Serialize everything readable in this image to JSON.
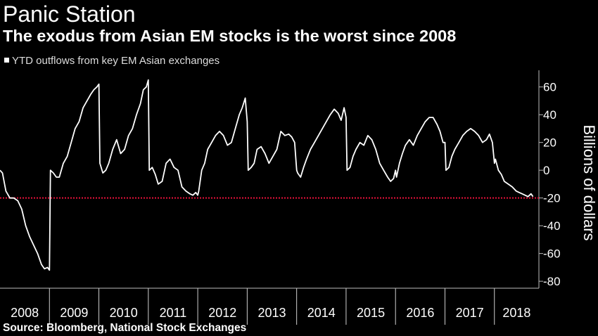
{
  "title": "Panic Station",
  "subtitle": "The exodus from Asian EM stocks is the worst since 2008",
  "source": "Source: Bloomberg, National Stock Exchanges",
  "colors": {
    "background": "#000000",
    "line": "#ffffff",
    "reference_line": "#e8113a",
    "axis": "#bbbbbb"
  },
  "chart_data": {
    "type": "line",
    "title": "",
    "xlabel": "",
    "ylabel": "Billions of dollars",
    "legend": [
      "YTD outflows from key EM Asian exchanges"
    ],
    "legend_position": "top-left",
    "x_domain": [
      2008.0,
      2018.9
    ],
    "ylim": [
      -85,
      72
    ],
    "y_axis_side": "right",
    "y_ticks": [
      60,
      40,
      20,
      0,
      -20,
      -40,
      -60,
      -80
    ],
    "y_tick_labels": [
      "60",
      "40",
      "20",
      "0",
      "-20",
      "-40",
      "-60",
      "-80"
    ],
    "x_tick_labels": [
      "2008",
      "2009",
      "2010",
      "2011",
      "2012",
      "2013",
      "2014",
      "2015",
      "2016",
      "2017",
      "2018"
    ],
    "grid": false,
    "reference_line": {
      "y": -20,
      "style": "dotted"
    },
    "series": [
      {
        "name": "YTD outflows from key EM Asian exchanges",
        "x": [
          2008.0,
          2008.05,
          2008.12,
          2008.2,
          2008.28,
          2008.36,
          2008.44,
          2008.52,
          2008.6,
          2008.68,
          2008.76,
          2008.84,
          2008.9,
          2008.96,
          2009.0,
          2009.02,
          2009.08,
          2009.14,
          2009.2,
          2009.28,
          2009.36,
          2009.44,
          2009.52,
          2009.6,
          2009.68,
          2009.76,
          2009.84,
          2009.9,
          2009.96,
          2010.0,
          2010.02,
          2010.08,
          2010.14,
          2010.2,
          2010.28,
          2010.36,
          2010.44,
          2010.52,
          2010.6,
          2010.68,
          2010.76,
          2010.84,
          2010.9,
          2010.96,
          2011.0,
          2011.02,
          2011.08,
          2011.14,
          2011.2,
          2011.28,
          2011.36,
          2011.44,
          2011.52,
          2011.6,
          2011.68,
          2011.76,
          2011.84,
          2011.9,
          2011.96,
          2012.0,
          2012.02,
          2012.08,
          2012.14,
          2012.2,
          2012.28,
          2012.36,
          2012.44,
          2012.52,
          2012.6,
          2012.68,
          2012.76,
          2012.84,
          2012.9,
          2012.96,
          2013.0,
          2013.02,
          2013.08,
          2013.14,
          2013.2,
          2013.28,
          2013.36,
          2013.44,
          2013.52,
          2013.6,
          2013.68,
          2013.76,
          2013.84,
          2013.9,
          2013.96,
          2014.0,
          2014.02,
          2014.08,
          2014.14,
          2014.2,
          2014.28,
          2014.36,
          2014.44,
          2014.52,
          2014.6,
          2014.68,
          2014.76,
          2014.84,
          2014.9,
          2014.96,
          2015.0,
          2015.02,
          2015.08,
          2015.14,
          2015.2,
          2015.28,
          2015.36,
          2015.44,
          2015.52,
          2015.6,
          2015.68,
          2015.76,
          2015.84,
          2015.9,
          2015.96,
          2016.0,
          2016.02,
          2016.08,
          2016.14,
          2016.2,
          2016.28,
          2016.36,
          2016.44,
          2016.52,
          2016.6,
          2016.68,
          2016.76,
          2016.84,
          2016.9,
          2016.96,
          2017.0,
          2017.02,
          2017.08,
          2017.14,
          2017.2,
          2017.28,
          2017.36,
          2017.44,
          2017.52,
          2017.6,
          2017.68,
          2017.76,
          2017.84,
          2017.9,
          2017.96,
          2018.0,
          2018.02,
          2018.08,
          2018.14,
          2018.2,
          2018.28,
          2018.36,
          2018.44,
          2018.5,
          2018.56,
          2018.62,
          2018.68,
          2018.74,
          2018.78
        ],
        "values": [
          0,
          -2,
          -15,
          -20,
          -20,
          -22,
          -28,
          -40,
          -48,
          -54,
          -60,
          -68,
          -71,
          -70,
          -72,
          0,
          -2,
          -5,
          -5,
          5,
          10,
          20,
          30,
          35,
          45,
          50,
          55,
          58,
          60,
          62,
          5,
          -2,
          0,
          5,
          15,
          22,
          12,
          15,
          25,
          30,
          40,
          48,
          58,
          60,
          65,
          0,
          2,
          -3,
          -10,
          -8,
          5,
          8,
          2,
          0,
          -12,
          -15,
          -17,
          -18,
          -16,
          -18,
          -15,
          0,
          5,
          15,
          20,
          25,
          28,
          25,
          18,
          20,
          30,
          40,
          45,
          52,
          35,
          0,
          2,
          5,
          15,
          17,
          12,
          5,
          10,
          15,
          28,
          25,
          26,
          24,
          20,
          0,
          -2,
          -5,
          2,
          8,
          15,
          20,
          25,
          30,
          35,
          40,
          44,
          41,
          36,
          45,
          38,
          0,
          2,
          10,
          15,
          20,
          18,
          25,
          22,
          15,
          5,
          0,
          -5,
          -8,
          -6,
          0,
          -5,
          5,
          12,
          18,
          22,
          18,
          25,
          30,
          35,
          38,
          38,
          33,
          28,
          20,
          20,
          0,
          2,
          10,
          15,
          20,
          25,
          28,
          30,
          28,
          25,
          20,
          22,
          26,
          20,
          5,
          8,
          0,
          -3,
          -8,
          -10,
          -12,
          -15,
          -16,
          -17,
          -18,
          -19,
          -17,
          -19
        ]
      }
    ]
  }
}
